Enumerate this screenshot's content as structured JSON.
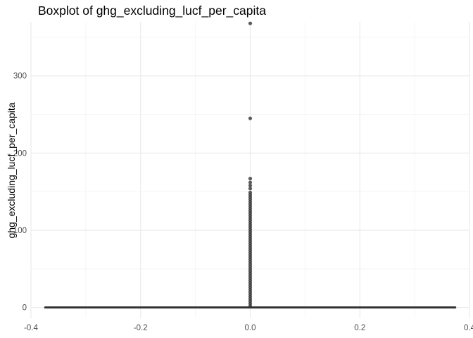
{
  "chart_data": {
    "type": "boxplot",
    "title": "Boxplot of ghg_excluding_lucf_per_capita",
    "xlabel": "",
    "ylabel": "ghg_excluding_lucf_per_capita",
    "xlim": [
      -0.4,
      0.4
    ],
    "ylim": [
      -14,
      370
    ],
    "x_ticks": [
      -0.4,
      -0.2,
      0.0,
      0.2,
      0.4
    ],
    "x_tick_labels": [
      "-0.4",
      "-0.2",
      "0.0",
      "0.2",
      "0.4"
    ],
    "y_ticks": [
      0,
      100,
      200,
      300
    ],
    "y_tick_labels": [
      "0",
      "100",
      "200",
      "300"
    ],
    "grid": true,
    "box": {
      "x_center": 0.0,
      "x_extent": [
        -0.375,
        0.375
      ],
      "q1": 0.0,
      "median": 0.0,
      "q3": 0.0,
      "whisker_low": 0.0,
      "whisker_high": 0.0
    },
    "outliers": {
      "x": 0.0,
      "points": [
        368,
        245,
        167,
        162,
        158,
        154,
        149,
        146,
        143,
        140,
        137,
        134,
        131,
        128,
        125,
        122,
        119,
        116,
        113,
        110,
        107,
        104,
        101,
        98,
        95,
        92,
        89,
        86,
        83,
        80,
        77,
        74,
        71,
        68,
        65,
        62,
        59,
        56,
        53,
        50,
        47,
        44,
        41,
        38,
        35,
        32,
        29,
        26,
        23,
        20,
        17,
        14,
        11,
        8,
        5,
        2
      ]
    },
    "colors": {
      "points": "#333333",
      "box": "#333333",
      "grid_major": "#ebebeb",
      "grid_minor": "#f5f5f5"
    }
  }
}
